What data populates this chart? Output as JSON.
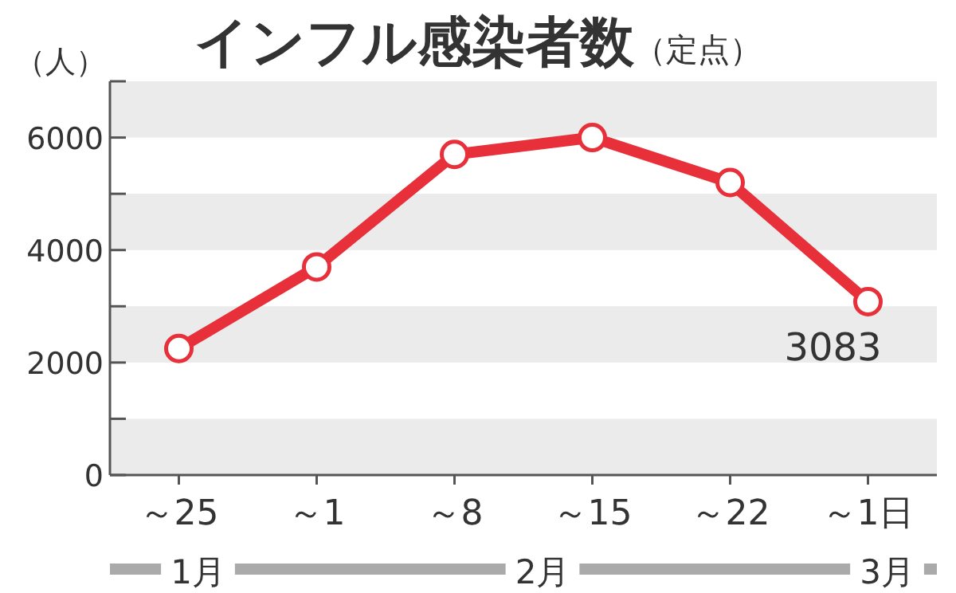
{
  "chart_data": {
    "type": "line",
    "title": "インフル感染者数",
    "subtitle": "（定点）",
    "ylabel": "（人）",
    "categories": [
      "～25",
      "～1",
      "～8",
      "～15",
      "～22",
      "～1日"
    ],
    "series": [
      {
        "color": "#e8303a",
        "values": [
          2250,
          3700,
          5700,
          6000,
          5200,
          3083
        ],
        "value_labels": [
          null,
          null,
          null,
          null,
          null,
          "3083"
        ]
      }
    ],
    "ylim": [
      0,
      7000
    ],
    "yticks": [
      0,
      {
        "value": 1000,
        "label": null
      },
      2000,
      {
        "value": 3000,
        "label": null
      },
      4000,
      {
        "value": 5000,
        "label": null
      },
      6000,
      {
        "value": 7000,
        "label": null
      }
    ],
    "bands": [
      {
        "axis": "y",
        "from": 0,
        "to": 1000,
        "color": "#ebebeb"
      },
      {
        "axis": "y",
        "from": 2000,
        "to": 3000,
        "color": "#ebebeb"
      },
      {
        "axis": "y",
        "from": 4000,
        "to": 5000,
        "color": "#ebebeb"
      },
      {
        "axis": "y",
        "from": 6000,
        "to": 7000,
        "color": "#ebebeb"
      }
    ],
    "annotations": [
      "1月",
      "2月",
      "3月"
    ],
    "marker": "circle",
    "line_style": "solid"
  }
}
